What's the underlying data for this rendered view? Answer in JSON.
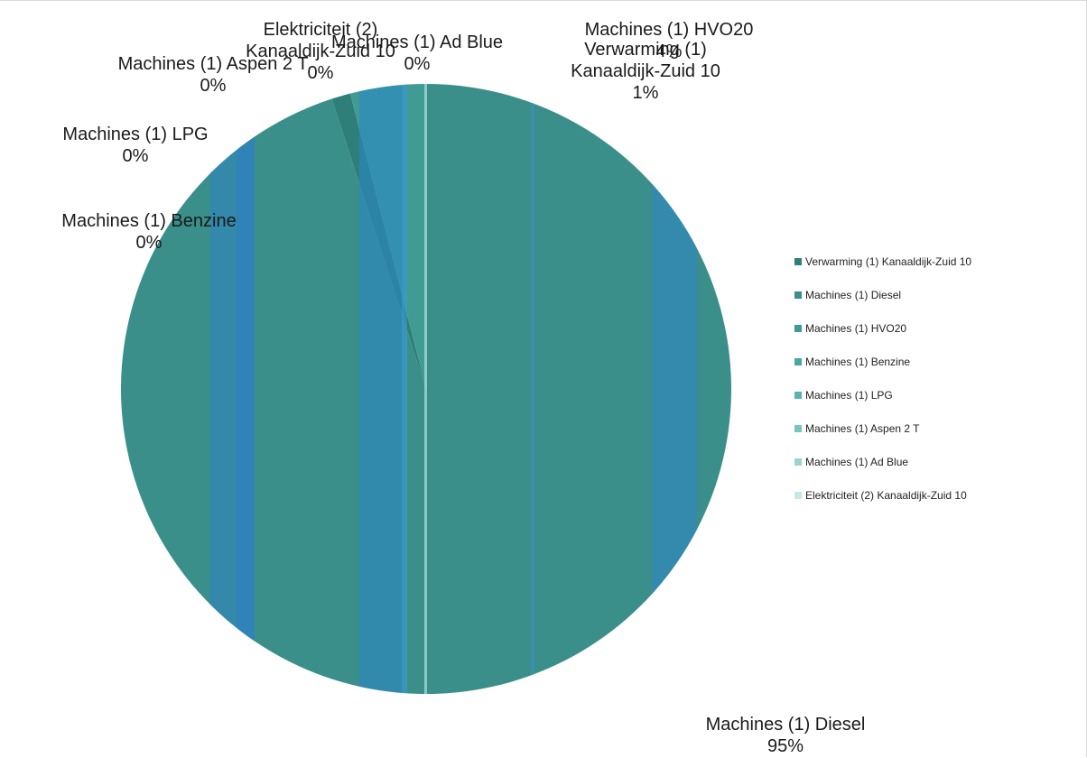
{
  "chart_data": {
    "type": "pie",
    "title": "",
    "categories": [
      "Verwarming (1) Kanaaldijk-Zuid 10",
      "Machines (1) Diesel",
      "Machines (1) HVO20",
      "Machines (1) Benzine",
      "Machines (1) LPG",
      "Machines (1) Aspen 2 T",
      "Machines (1) Ad Blue",
      "Elektriciteit (2) Kanaaldijk-Zuid 10"
    ],
    "values": [
      1,
      95,
      4,
      0,
      0,
      0,
      0,
      0
    ],
    "labels": [
      "1%",
      "95%",
      "4%",
      "0%",
      "0%",
      "0%",
      "0%",
      "0%"
    ],
    "colors": [
      "#2e7f7a",
      "#3b8f8a",
      "#3f9b94",
      "#4aa6a0",
      "#5ab4ae",
      "#78c4bf",
      "#9ad4d0",
      "#c6e8e6"
    ],
    "legend_position": "right"
  },
  "data_labels": [
    {
      "name": "Verwarming (1)",
      "sub": "Kanaaldijk-Zuid 10",
      "pct": "1%"
    },
    {
      "name": "Machines (1) Diesel",
      "sub": "",
      "pct": "95%"
    },
    {
      "name": "Machines (1) HVO20",
      "sub": "",
      "pct": "4%"
    },
    {
      "name": "Machines (1) Benzine",
      "sub": "",
      "pct": "0%"
    },
    {
      "name": "Machines (1) LPG",
      "sub": "",
      "pct": "0%"
    },
    {
      "name": "Machines (1) Aspen 2 T",
      "sub": "",
      "pct": "0%"
    },
    {
      "name": "Machines (1) Ad Blue",
      "sub": "",
      "pct": "0%"
    },
    {
      "name": "Elektriciteit (2)",
      "sub": "Kanaaldijk-Zuid 10",
      "pct": "0%"
    }
  ]
}
